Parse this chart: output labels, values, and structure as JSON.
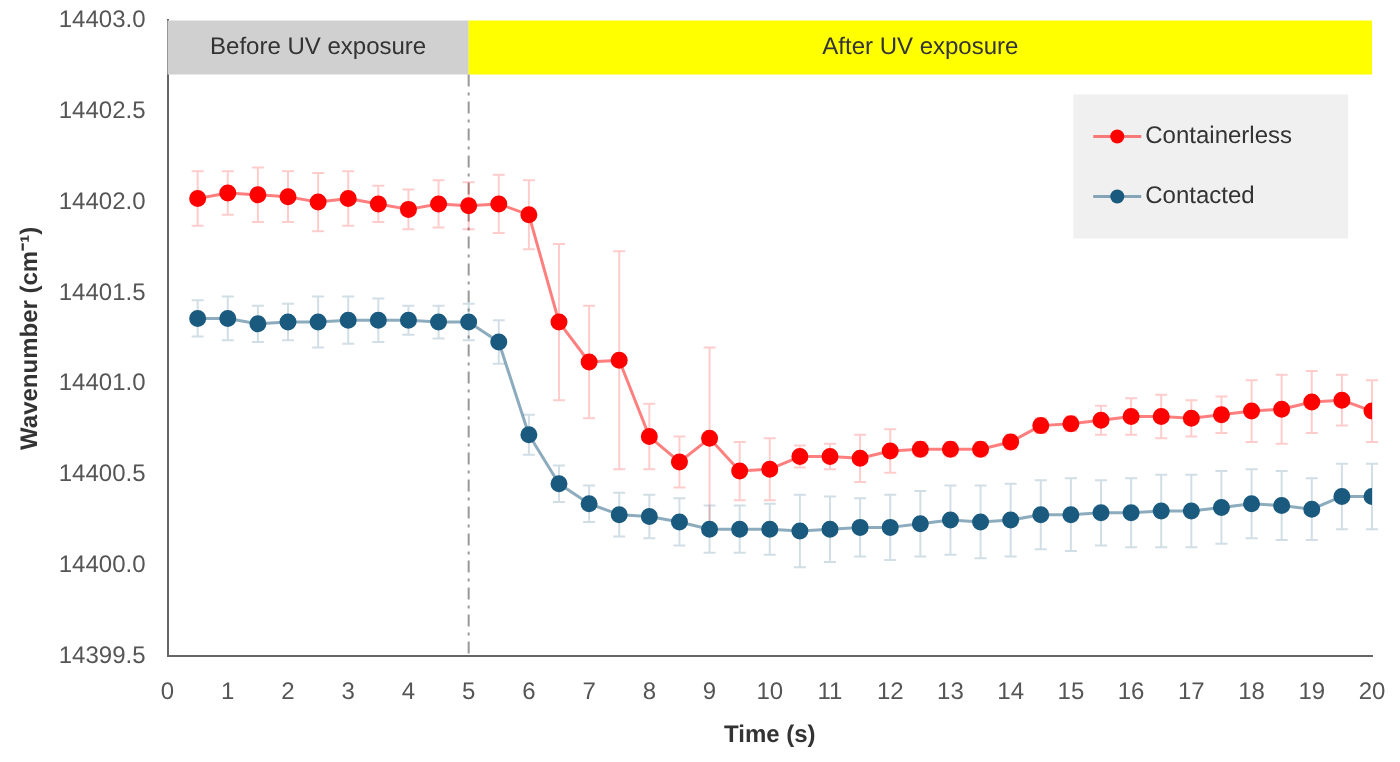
{
  "chart_data": {
    "type": "line",
    "xlabel": "Time (s)",
    "ylabel": "Wavenumber (cm⁻¹)",
    "x": [
      0.5,
      1,
      1.5,
      2,
      2.5,
      3,
      3.5,
      4,
      4.5,
      5,
      5.5,
      6,
      6.5,
      7,
      7.5,
      8,
      8.5,
      9,
      9.5,
      10,
      10.5,
      11,
      11.5,
      12,
      12.5,
      13,
      13.5,
      14,
      14.5,
      15,
      15.5,
      16,
      16.5,
      17,
      17.5,
      18,
      18.5,
      19,
      19.5,
      20
    ],
    "series": [
      {
        "name": "Containerless",
        "color": "#ff0000",
        "values": [
          14402.02,
          14402.05,
          14402.04,
          14402.03,
          14402.0,
          14402.02,
          14401.99,
          14401.96,
          14401.99,
          14401.98,
          14401.99,
          14401.93,
          14401.34,
          14401.12,
          14401.13,
          14400.71,
          14400.57,
          14400.7,
          14400.52,
          14400.53,
          14400.6,
          14400.6,
          14400.59,
          14400.63,
          14400.64,
          14400.64,
          14400.64,
          14400.68,
          14400.77,
          14400.78,
          14400.8,
          14400.82,
          14400.82,
          14400.81,
          14400.83,
          14400.85,
          14400.86,
          14400.9,
          14400.91,
          14400.85
        ],
        "errors": [
          0.15,
          0.12,
          0.15,
          0.14,
          0.16,
          0.15,
          0.1,
          0.11,
          0.13,
          0.13,
          0.16,
          0.19,
          0.43,
          0.31,
          0.6,
          0.18,
          0.14,
          0.5,
          0.16,
          0.17,
          0.06,
          0.07,
          0.13,
          0.12,
          0.04,
          0.04,
          0.04,
          0.04,
          0.04,
          0.04,
          0.08,
          0.1,
          0.12,
          0.1,
          0.1,
          0.17,
          0.19,
          0.17,
          0.14,
          0.17
        ]
      },
      {
        "name": "Contacted",
        "color": "#1a5a7e",
        "values": [
          14401.36,
          14401.36,
          14401.33,
          14401.34,
          14401.34,
          14401.35,
          14401.35,
          14401.35,
          14401.34,
          14401.34,
          14401.23,
          14400.72,
          14400.45,
          14400.34,
          14400.28,
          14400.27,
          14400.24,
          14400.2,
          14400.2,
          14400.2,
          14400.19,
          14400.2,
          14400.21,
          14400.21,
          14400.23,
          14400.25,
          14400.24,
          14400.25,
          14400.28,
          14400.28,
          14400.29,
          14400.29,
          14400.3,
          14400.3,
          14400.32,
          14400.34,
          14400.33,
          14400.31,
          14400.38,
          14400.38
        ],
        "errors": [
          0.1,
          0.12,
          0.1,
          0.1,
          0.14,
          0.13,
          0.12,
          0.08,
          0.09,
          0.1,
          0.12,
          0.11,
          0.1,
          0.1,
          0.12,
          0.12,
          0.13,
          0.13,
          0.13,
          0.14,
          0.2,
          0.18,
          0.16,
          0.18,
          0.18,
          0.19,
          0.2,
          0.2,
          0.19,
          0.2,
          0.18,
          0.19,
          0.2,
          0.2,
          0.2,
          0.19,
          0.19,
          0.17,
          0.18,
          0.18
        ]
      }
    ],
    "xlim": [
      0,
      20
    ],
    "xticks": [
      0,
      1,
      2,
      3,
      4,
      5,
      6,
      7,
      8,
      9,
      10,
      11,
      12,
      13,
      14,
      15,
      16,
      17,
      18,
      19,
      20
    ],
    "ylim": [
      14399.5,
      14403
    ],
    "yticks": [
      {
        "value": 14399.5,
        "label": "14399.5"
      },
      {
        "value": 14400,
        "label": "14400.0"
      },
      {
        "value": 14400.5,
        "label": "14400.5"
      },
      {
        "value": 14401,
        "label": "14401.0"
      },
      {
        "value": 14401.5,
        "label": "14401.5"
      },
      {
        "value": 14402,
        "label": "14402.0"
      },
      {
        "value": 14402.5,
        "label": "14402.5"
      },
      {
        "value": 14403,
        "label": "14403.0"
      }
    ],
    "bands": [
      {
        "axis": "x",
        "from": 0,
        "to": 5,
        "label": "Before UV exposure",
        "color": "#d0d0d0"
      },
      {
        "axis": "x",
        "from": 5,
        "to": 20,
        "label": "After UV exposure",
        "color": "#ffff00"
      }
    ],
    "ref_lines": [
      {
        "axis": "x",
        "value": 5,
        "color": "#999999",
        "line_style": "dashdot"
      }
    ],
    "grid": false,
    "legend": "top right",
    "marker": "circle",
    "line_style": "solid"
  }
}
